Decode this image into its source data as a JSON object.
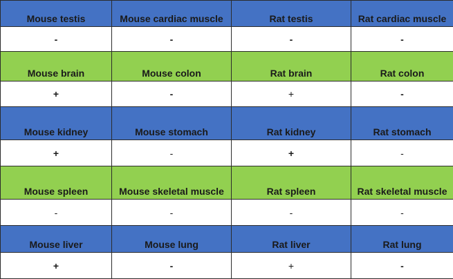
{
  "rows": [
    {
      "header": [
        "Mouse testis",
        "Mouse cardiac muscle",
        "Rat testis",
        "Rat cardiac muscle"
      ],
      "values": [
        "-",
        "-",
        "-",
        "-"
      ],
      "color": "#4472c4"
    },
    {
      "header": [
        "Mouse brain",
        "Mouse colon",
        "Rat brain",
        "Rat colon"
      ],
      "values": [
        "+",
        "-",
        "+",
        "-"
      ],
      "color": "#92d050"
    },
    {
      "header": [
        "Mouse kidney",
        "Mouse stomach",
        "Rat kidney",
        "Rat stomach"
      ],
      "values": [
        "+",
        "-",
        "+",
        "-"
      ],
      "color": "#4472c4"
    },
    {
      "header": [
        "Mouse spleen",
        "Mouse skeletal muscle",
        "Rat spleen",
        "Rat skeletal muscle"
      ],
      "values": [
        "-",
        "-",
        "-",
        "-"
      ],
      "color": "#92d050"
    },
    {
      "header": [
        "Mouse liver",
        "Mouse lung",
        "Rat liver",
        "Rat lung"
      ],
      "values": [
        "+",
        "-",
        "+",
        "-"
      ],
      "color": "#4472c4"
    }
  ]
}
